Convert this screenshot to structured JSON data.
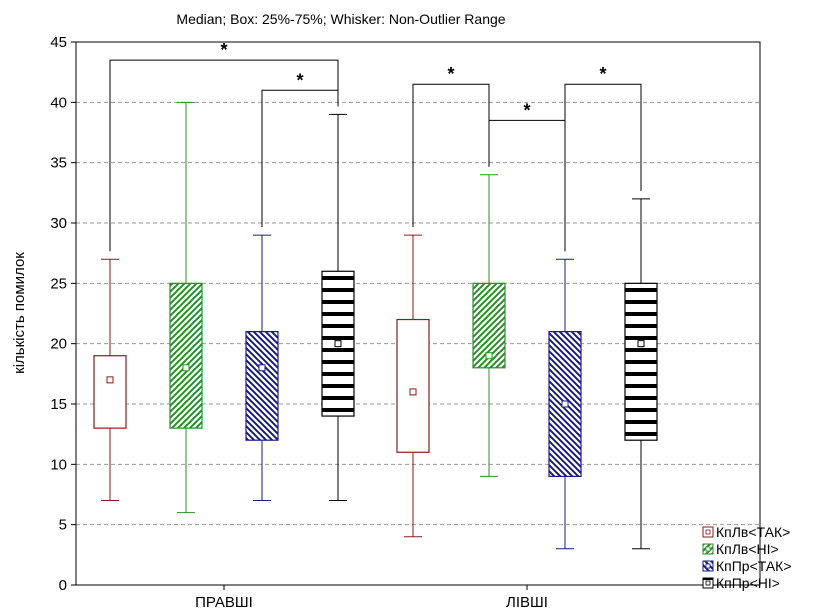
{
  "chart_data": {
    "type": "box",
    "title": "Median; Box: 25%-75%; Whisker: Non-Outlier Range",
    "ylabel": "кількість помилок",
    "ylim": [
      0,
      45
    ],
    "yticks": [
      0,
      5,
      10,
      15,
      20,
      25,
      30,
      35,
      40,
      45
    ],
    "ytick_labels": [
      "0",
      "5",
      "10",
      "15",
      "20",
      "25",
      "30",
      "35",
      "40",
      "45"
    ],
    "categories": [
      "ПРАВШІ",
      "ЛІВШІ"
    ],
    "legend_position": "bottom-right",
    "grid": "horizontal dashed",
    "series": [
      {
        "name": "КпЛв<ТАК>",
        "color": "#8b1a1a",
        "pattern": "none",
        "boxes": [
          {
            "min": 7,
            "q1": 13,
            "median": 17,
            "q3": 19,
            "max": 27
          },
          {
            "min": 4,
            "q1": 11,
            "median": 16,
            "q3": 22,
            "max": 29
          }
        ]
      },
      {
        "name": "КпЛв<НІ>",
        "color": "#2e8b2e",
        "pattern": "diagonal-up",
        "boxes": [
          {
            "min": 6,
            "q1": 13,
            "median": 18,
            "q3": 25,
            "max": 40
          },
          {
            "min": 9,
            "q1": 18,
            "median": 19,
            "q3": 25,
            "max": 34
          }
        ]
      },
      {
        "name": "КпПр<ТАК>",
        "color": "#1a1a8b",
        "pattern": "diagonal-down",
        "boxes": [
          {
            "min": 7,
            "q1": 12,
            "median": 18,
            "q3": 21,
            "max": 29
          },
          {
            "min": 3,
            "q1": 9,
            "median": 15,
            "q3": 21,
            "max": 27
          }
        ]
      },
      {
        "name": "КпПр<НІ>",
        "color": "#000000",
        "pattern": "horizontal",
        "boxes": [
          {
            "min": 7,
            "q1": 14,
            "median": 20,
            "q3": 26,
            "max": 39
          },
          {
            "min": 3,
            "q1": 12,
            "median": 20,
            "q3": 25,
            "max": 32
          }
        ]
      }
    ],
    "significance": [
      {
        "from": [
          0,
          0
        ],
        "to": [
          0,
          3
        ],
        "y": 43.5,
        "label": "*"
      },
      {
        "from": [
          0,
          2
        ],
        "to": [
          0,
          3
        ],
        "y": 41,
        "label": "*"
      },
      {
        "from": [
          1,
          0
        ],
        "to": [
          1,
          1
        ],
        "y": 41.5,
        "label": "*"
      },
      {
        "from": [
          1,
          1
        ],
        "to": [
          1,
          2
        ],
        "y": 38.5,
        "label": "*"
      },
      {
        "from": [
          1,
          2
        ],
        "to": [
          1,
          3
        ],
        "y": 41.5,
        "label": "*"
      }
    ]
  }
}
